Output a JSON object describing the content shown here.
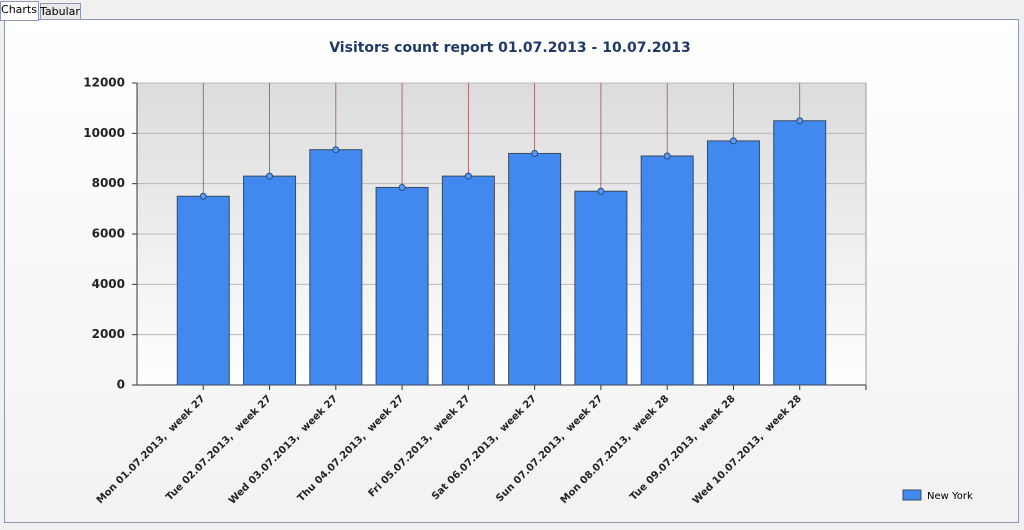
{
  "tabs": [
    "Charts",
    "Tabular"
  ],
  "chart_data": {
    "type": "bar",
    "title": "Visitors count report 01.07.2013 - 10.07.2013",
    "categories": [
      "Mon 01.07.2013,  week 27",
      "Tue 02.07.2013,  week 27",
      "Wed 03.07.2013,  week 27",
      "Thu 04.07.2013,  week 27",
      "Fri 05.07.2013,  week 27",
      "Sat 06.07.2013,  week 27",
      "Sun 07.07.2013,  week 27",
      "Mon 08.07.2013,  week 28",
      "Tue 09.07.2013,  week 28",
      "Wed 10.07.2013,  week 28"
    ],
    "series": [
      {
        "name": "New York",
        "color": "#4189ee",
        "values": [
          7500,
          8300,
          9350,
          7850,
          8300,
          9200,
          7700,
          9100,
          9700,
          10500
        ]
      }
    ],
    "ylim": [
      0,
      12000
    ],
    "yticks": [
      0,
      2000,
      4000,
      6000,
      8000,
      10000,
      12000
    ],
    "grid": true,
    "legend": "bottom-right"
  }
}
